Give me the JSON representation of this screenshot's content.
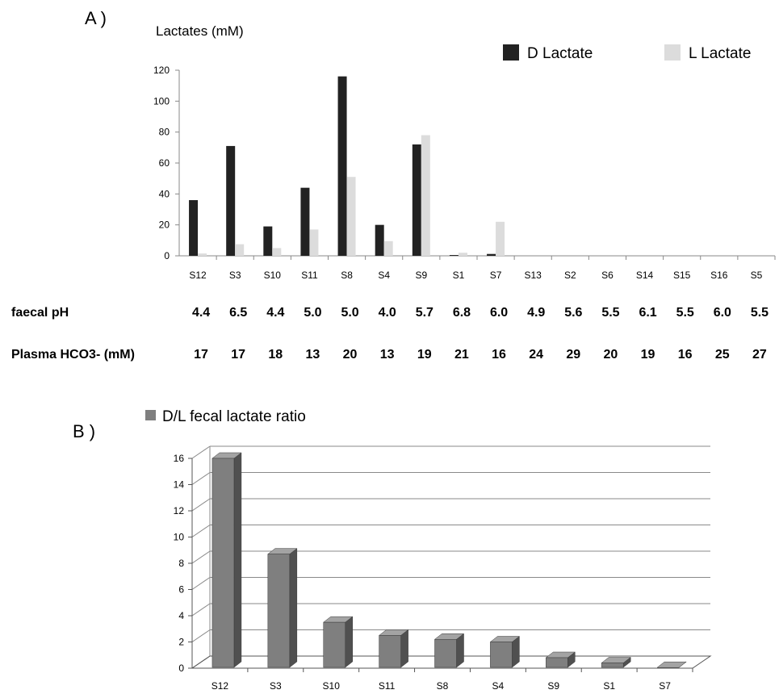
{
  "panel_a": {
    "label": "A )",
    "chart_data": {
      "type": "bar",
      "ylabel": "Lactates (mM)",
      "xlabel": "",
      "ylim": [
        0,
        120
      ],
      "yticks": [
        0,
        20,
        40,
        60,
        80,
        100,
        120
      ],
      "legend_position": "top-right",
      "categories": [
        "S12",
        "S3",
        "S10",
        "S11",
        "S8",
        "S4",
        "S9",
        "S1",
        "S7",
        "S13",
        "S2",
        "S6",
        "S14",
        "S15",
        "S16",
        "S5"
      ],
      "series": [
        {
          "name": "D Lactate",
          "color": "#222222",
          "values": [
            36,
            71,
            19,
            44,
            116,
            20,
            72,
            0.5,
            1.2,
            0,
            0,
            0,
            0,
            0,
            0,
            0
          ]
        },
        {
          "name": "L Lactate",
          "color": "#dcdcdc",
          "values": [
            1.5,
            7.5,
            5,
            17,
            51,
            9.5,
            78,
            2,
            22,
            0,
            0,
            0,
            0,
            0,
            0,
            0
          ]
        }
      ]
    },
    "table_rows": [
      {
        "heading": "faecal  pH",
        "values": [
          "4.4",
          "6.5",
          "4.4",
          "5.0",
          "5.0",
          "4.0",
          "5.7",
          "6.8",
          "6.0",
          "4.9",
          "5.6",
          "5.5",
          "6.1",
          "5.5",
          "6.0",
          "5.5"
        ]
      },
      {
        "heading": "Plasma HCO3- (mM)",
        "values": [
          "17",
          "17",
          "18",
          "13",
          "20",
          "13",
          "19",
          "21",
          "16",
          "24",
          "29",
          "20",
          "19",
          "16",
          "25",
          "27"
        ]
      }
    ]
  },
  "panel_b": {
    "label": "B )",
    "chart_data": {
      "type": "bar",
      "ylim": [
        0,
        16
      ],
      "yticks": [
        0,
        2,
        4,
        6,
        8,
        10,
        12,
        14,
        16
      ],
      "grid": true,
      "legend_position": "top-left",
      "categories": [
        "S12",
        "S3",
        "S10",
        "S11",
        "S8",
        "S4",
        "S9",
        "S1",
        "S7"
      ],
      "series": [
        {
          "name": "D/L fecal lactate ratio",
          "color": "#7f7f7f",
          "values": [
            16,
            8.7,
            3.5,
            2.5,
            2.2,
            2.0,
            0.8,
            0.4,
            0.05
          ]
        }
      ]
    }
  }
}
